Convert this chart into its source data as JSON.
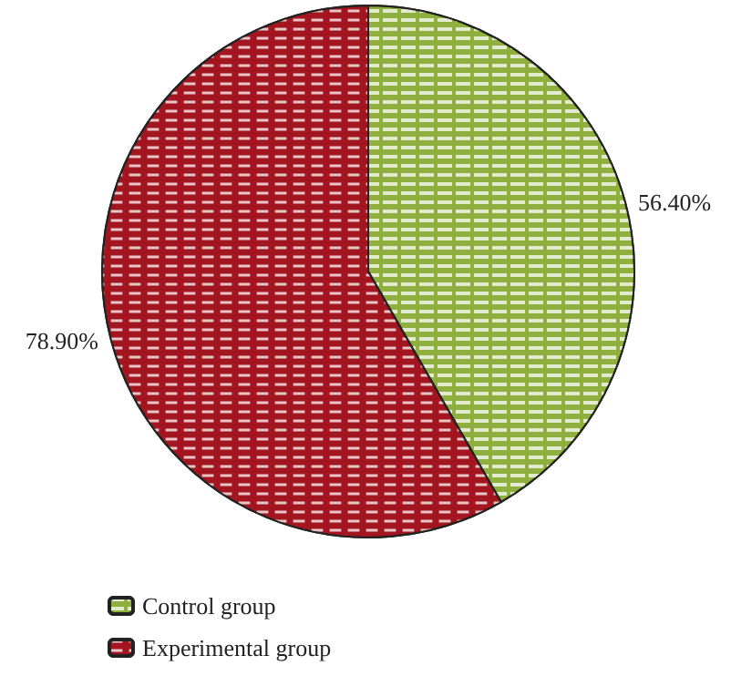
{
  "chart_data": {
    "type": "pie",
    "categories": [
      "Control group",
      "Experimental group"
    ],
    "values": [
      56.4,
      78.9
    ],
    "colors": [
      "#8fb03e",
      "#a3161f"
    ],
    "value_labels": [
      "56.40%",
      "78.90%"
    ],
    "legend": "bottom left"
  }
}
